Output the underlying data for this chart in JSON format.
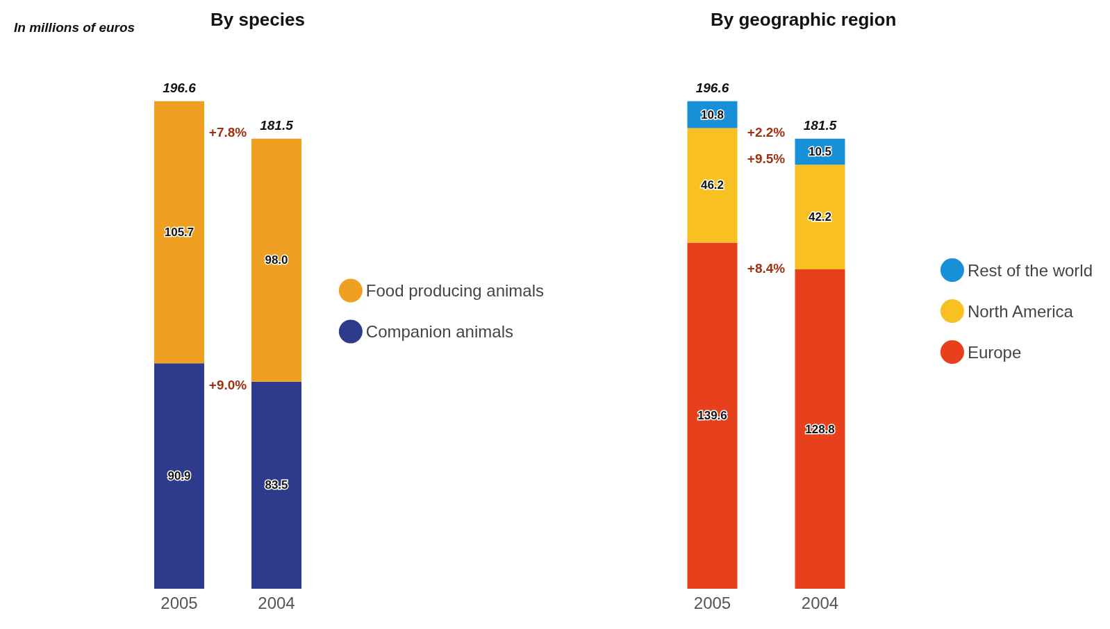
{
  "chart_data": [
    {
      "type": "bar",
      "title": "By species",
      "subtitle": "In millions of euros",
      "categories": [
        "2005",
        "2004"
      ],
      "stacked": true,
      "tick_labels": "x",
      "legend": "right",
      "series": [
        {
          "name": "Companion animals",
          "color": "#2e3a8c",
          "values": [
            90.9,
            83.5
          ],
          "value_labels": [
            "90.9",
            "83.5"
          ]
        },
        {
          "name": "Food producing animals",
          "color": "#f0a020",
          "values": [
            105.7,
            98.0
          ],
          "value_labels": [
            "105.7",
            "98.0"
          ]
        }
      ],
      "totals": [
        "196.6",
        "181.5"
      ],
      "annotations": [
        "+7.8%",
        "+9.0%"
      ]
    },
    {
      "type": "bar",
      "title": "By geographic region",
      "categories": [
        "2005",
        "2004"
      ],
      "stacked": true,
      "tick_labels": "x",
      "legend": "right",
      "series": [
        {
          "name": "Europe",
          "color": "#e8401c",
          "values": [
            139.6,
            128.8
          ],
          "value_labels": [
            "139.6",
            "128.8"
          ]
        },
        {
          "name": "North America",
          "color": "#f8c020",
          "values": [
            46.2,
            42.2
          ],
          "value_labels": [
            "46.2",
            "42.2"
          ]
        },
        {
          "name": "Rest of the world",
          "color": "#1890d8",
          "values": [
            10.8,
            10.5
          ],
          "value_labels": [
            "10.8",
            "10.5"
          ]
        }
      ],
      "totals": [
        "196.6",
        "181.5"
      ],
      "annotations": [
        "+2.2%",
        "+9.5%",
        "+8.4%"
      ]
    }
  ]
}
